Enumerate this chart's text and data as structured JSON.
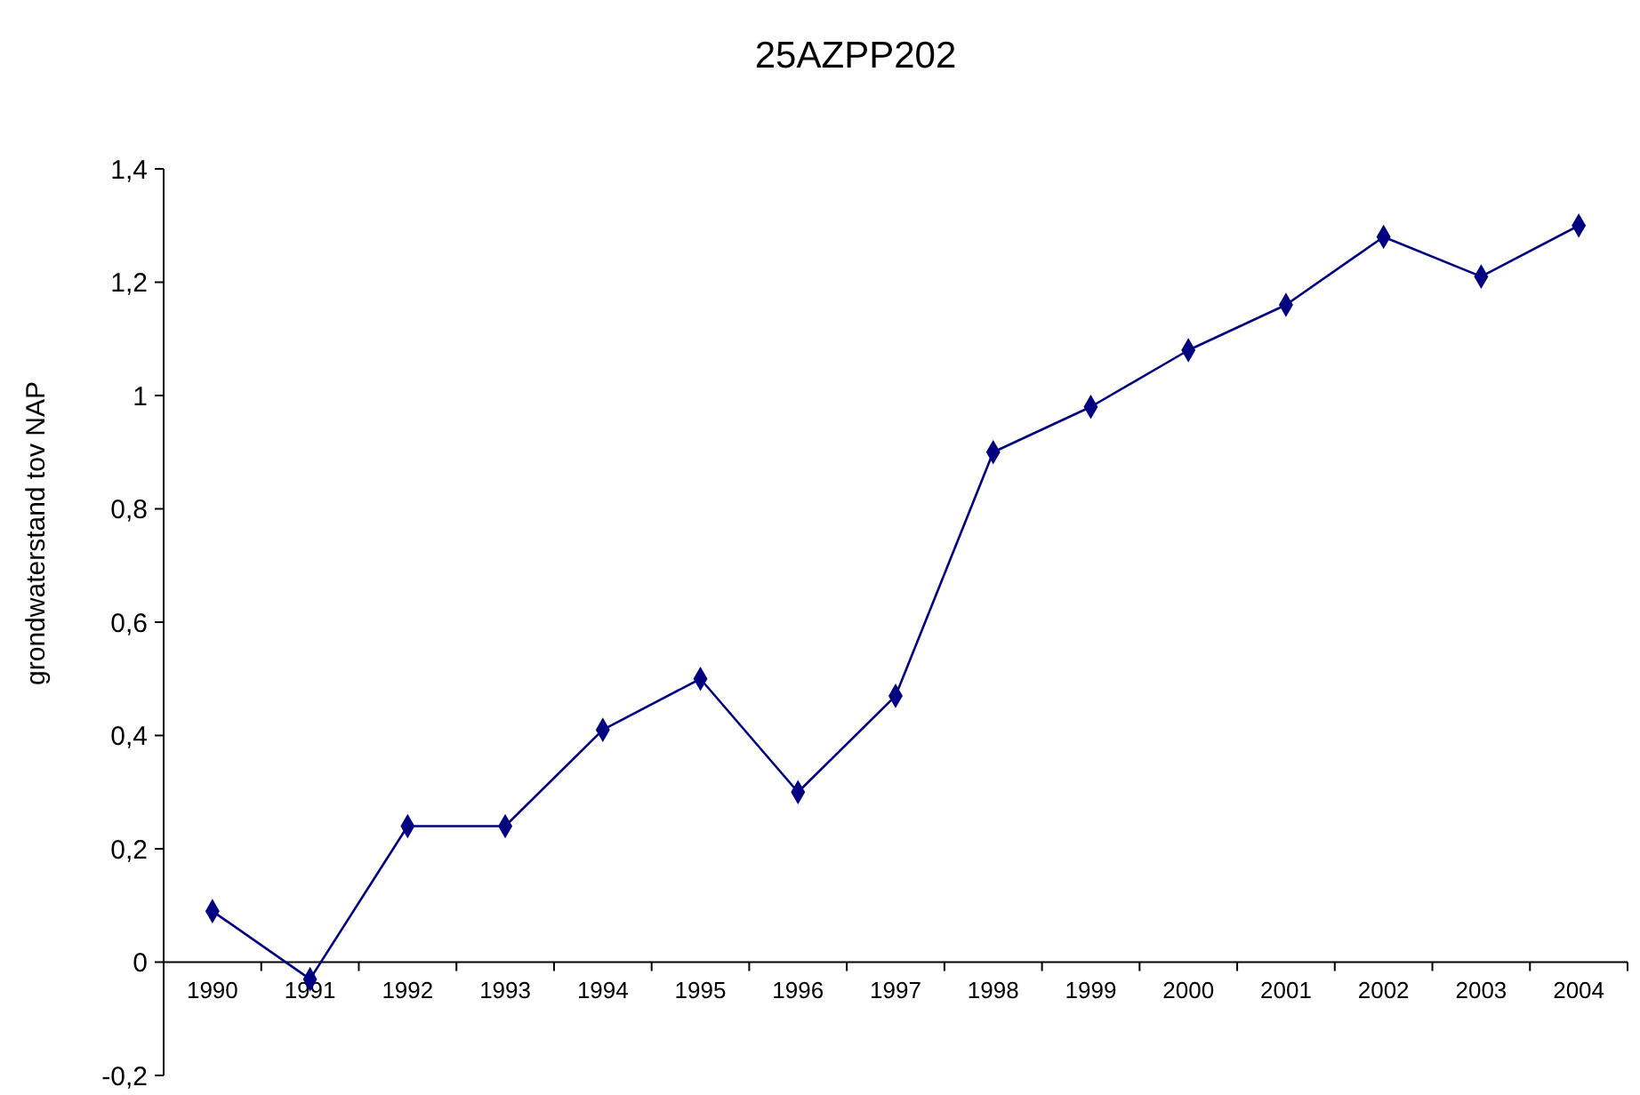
{
  "chart_data": {
    "type": "line",
    "title": "25AZPP202",
    "ylabel": "grondwaterstand tov NAP",
    "categories": [
      "1990",
      "1991",
      "1992",
      "1993",
      "1994",
      "1995",
      "1996",
      "1997",
      "1998",
      "1999",
      "2000",
      "2001",
      "2002",
      "2003",
      "2004"
    ],
    "series": [
      {
        "color": "#000080",
        "values": [
          0.09,
          -0.03,
          0.24,
          0.24,
          0.41,
          0.5,
          0.3,
          0.47,
          0.9,
          0.98,
          1.08,
          1.16,
          1.28,
          1.21,
          1.3
        ]
      }
    ],
    "ylim": [
      -0.2,
      1.4
    ],
    "yticks": [
      {
        "value": -0.2,
        "label": "-0,2"
      },
      0,
      {
        "value": 0.2,
        "label": "0,2"
      },
      {
        "value": 0.4,
        "label": "0,4"
      },
      {
        "value": 0.6,
        "label": "0,6"
      },
      {
        "value": 0.8,
        "label": "0,8"
      },
      1,
      {
        "value": 1.2,
        "label": "1,2"
      },
      {
        "value": 1.4,
        "label": "1,4"
      }
    ],
    "grid": false,
    "marker": "diamond",
    "line_style": "solid"
  }
}
